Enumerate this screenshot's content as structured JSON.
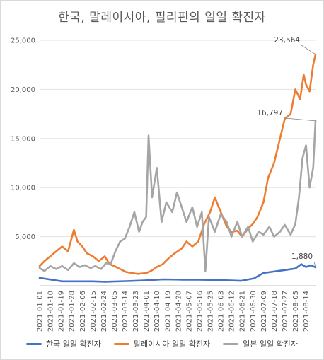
{
  "chart_data": {
    "type": "line",
    "title": "한국, 말레이시아, 필리핀의 일일 확진자",
    "ylim": [
      0,
      25000
    ],
    "yticks": [
      "-",
      "5,000",
      "10,000",
      "15,000",
      "20,000",
      "25,000"
    ],
    "ytick_values": [
      0,
      5000,
      10000,
      15000,
      20000,
      25000
    ],
    "grid": true,
    "legend_position": "bottom",
    "x_start": "2021-01-01",
    "x_end": "2021-08-22",
    "xtick_labels": [
      "2021-01-01",
      "2021-01-10",
      "2021-01-19",
      "2021-01-28",
      "2021-02-06",
      "2021-02-15",
      "2021-02-24",
      "2021-03-05",
      "2021-03-14",
      "2021-03-23",
      "2021-04-01",
      "2021-04-10",
      "2021-04-19",
      "2021-04-28",
      "2021-05-07",
      "2021-05-16",
      "2021-05-25",
      "2021-06-03",
      "2021-06-12",
      "2021-06-21",
      "2021-06-30",
      "2021-07-09",
      "2021-07-18",
      "2021-07-27",
      "2021-08-05",
      "2021-08-14"
    ],
    "annotations": [
      {
        "text": "23,564",
        "series": "말레이시아 일일 확진자",
        "x": "2021-08-22",
        "y": 23564
      },
      {
        "text": "16,797",
        "series": "일본 일일 확진자",
        "x": "2021-08-22",
        "y": 16797
      },
      {
        "text": "1,880",
        "series": "한국 일일 확진자",
        "x": "2021-08-22",
        "y": 1880
      }
    ],
    "series": [
      {
        "name": "한국 일일 확진자",
        "color": "#4472c4",
        "points": [
          [
            "2021-01-01",
            800
          ],
          [
            "2021-01-20",
            450
          ],
          [
            "2021-02-15",
            450
          ],
          [
            "2021-02-25",
            400
          ],
          [
            "2021-03-15",
            470
          ],
          [
            "2021-04-01",
            550
          ],
          [
            "2021-04-15",
            650
          ],
          [
            "2021-05-01",
            620
          ],
          [
            "2021-05-15",
            620
          ],
          [
            "2021-06-01",
            580
          ],
          [
            "2021-06-20",
            500
          ],
          [
            "2021-07-01",
            750
          ],
          [
            "2021-07-09",
            1300
          ],
          [
            "2021-07-18",
            1450
          ],
          [
            "2021-07-27",
            1600
          ],
          [
            "2021-08-05",
            1750
          ],
          [
            "2021-08-10",
            2200
          ],
          [
            "2021-08-14",
            1900
          ],
          [
            "2021-08-18",
            2100
          ],
          [
            "2021-08-22",
            1880
          ]
        ]
      },
      {
        "name": "말레이시아 일일 확진자",
        "color": "#ed7d31",
        "points": [
          [
            "2021-01-01",
            2000
          ],
          [
            "2021-01-05",
            2500
          ],
          [
            "2021-01-10",
            3000
          ],
          [
            "2021-01-15",
            3500
          ],
          [
            "2021-01-20",
            4000
          ],
          [
            "2021-01-25",
            3500
          ],
          [
            "2021-01-30",
            5700
          ],
          [
            "2021-02-02",
            4500
          ],
          [
            "2021-02-06",
            4000
          ],
          [
            "2021-02-10",
            3300
          ],
          [
            "2021-02-15",
            3000
          ],
          [
            "2021-02-20",
            2500
          ],
          [
            "2021-02-25",
            3000
          ],
          [
            "2021-03-01",
            2200
          ],
          [
            "2021-03-05",
            2000
          ],
          [
            "2021-03-10",
            1700
          ],
          [
            "2021-03-15",
            1400
          ],
          [
            "2021-03-20",
            1300
          ],
          [
            "2021-03-25",
            1200
          ],
          [
            "2021-04-01",
            1300
          ],
          [
            "2021-04-05",
            1500
          ],
          [
            "2021-04-10",
            1900
          ],
          [
            "2021-04-15",
            2200
          ],
          [
            "2021-04-20",
            2800
          ],
          [
            "2021-04-25",
            3300
          ],
          [
            "2021-05-01",
            3800
          ],
          [
            "2021-05-05",
            4500
          ],
          [
            "2021-05-10",
            4000
          ],
          [
            "2021-05-15",
            4500
          ],
          [
            "2021-05-20",
            6300
          ],
          [
            "2021-05-25",
            7500
          ],
          [
            "2021-05-29",
            9000
          ],
          [
            "2021-06-03",
            7500
          ],
          [
            "2021-06-08",
            6000
          ],
          [
            "2021-06-12",
            5500
          ],
          [
            "2021-06-17",
            5600
          ],
          [
            "2021-06-21",
            5000
          ],
          [
            "2021-06-26",
            5800
          ],
          [
            "2021-06-30",
            6300
          ],
          [
            "2021-07-04",
            7000
          ],
          [
            "2021-07-09",
            8500
          ],
          [
            "2021-07-13",
            11000
          ],
          [
            "2021-07-18",
            12500
          ],
          [
            "2021-07-23",
            15000
          ],
          [
            "2021-07-27",
            17000
          ],
          [
            "2021-08-01",
            17500
          ],
          [
            "2021-08-05",
            20000
          ],
          [
            "2021-08-09",
            19000
          ],
          [
            "2021-08-12",
            21500
          ],
          [
            "2021-08-14",
            20500
          ],
          [
            "2021-08-17",
            19800
          ],
          [
            "2021-08-20",
            22500
          ],
          [
            "2021-08-22",
            23564
          ]
        ]
      },
      {
        "name": "일본 일일 확진자",
        "color": "#a5a5a5",
        "points": [
          [
            "2021-01-01",
            1800
          ],
          [
            "2021-01-05",
            1500
          ],
          [
            "2021-01-10",
            2000
          ],
          [
            "2021-01-15",
            1700
          ],
          [
            "2021-01-20",
            2000
          ],
          [
            "2021-01-25",
            1600
          ],
          [
            "2021-01-30",
            2300
          ],
          [
            "2021-02-04",
            1900
          ],
          [
            "2021-02-08",
            2100
          ],
          [
            "2021-02-13",
            1800
          ],
          [
            "2021-02-17",
            2000
          ],
          [
            "2021-02-22",
            1700
          ],
          [
            "2021-02-26",
            2300
          ],
          [
            "2021-03-02",
            2200
          ],
          [
            "2021-03-06",
            3500
          ],
          [
            "2021-03-10",
            4500
          ],
          [
            "2021-03-14",
            4800
          ],
          [
            "2021-03-18",
            6000
          ],
          [
            "2021-03-22",
            7500
          ],
          [
            "2021-03-26",
            5500
          ],
          [
            "2021-03-29",
            6500
          ],
          [
            "2021-04-01",
            7000
          ],
          [
            "2021-04-03",
            15300
          ],
          [
            "2021-04-06",
            9000
          ],
          [
            "2021-04-10",
            12000
          ],
          [
            "2021-04-14",
            6500
          ],
          [
            "2021-04-18",
            8500
          ],
          [
            "2021-04-23",
            7500
          ],
          [
            "2021-04-27",
            9500
          ],
          [
            "2021-05-01",
            8000
          ],
          [
            "2021-05-05",
            6500
          ],
          [
            "2021-05-10",
            8000
          ],
          [
            "2021-05-14",
            6000
          ],
          [
            "2021-05-18",
            7500
          ],
          [
            "2021-05-21",
            1500
          ],
          [
            "2021-05-24",
            7000
          ],
          [
            "2021-05-29",
            5500
          ],
          [
            "2021-06-03",
            7300
          ],
          [
            "2021-06-08",
            6500
          ],
          [
            "2021-06-12",
            5000
          ],
          [
            "2021-06-17",
            6500
          ],
          [
            "2021-06-21",
            5000
          ],
          [
            "2021-06-26",
            6000
          ],
          [
            "2021-06-30",
            4500
          ],
          [
            "2021-07-05",
            5500
          ],
          [
            "2021-07-09",
            5200
          ],
          [
            "2021-07-14",
            6000
          ],
          [
            "2021-07-18",
            5000
          ],
          [
            "2021-07-23",
            5500
          ],
          [
            "2021-07-27",
            6200
          ],
          [
            "2021-08-01",
            5200
          ],
          [
            "2021-08-05",
            6300
          ],
          [
            "2021-08-08",
            9000
          ],
          [
            "2021-08-11",
            13000
          ],
          [
            "2021-08-14",
            14300
          ],
          [
            "2021-08-17",
            10000
          ],
          [
            "2021-08-20",
            12000
          ],
          [
            "2021-08-22",
            16797
          ]
        ]
      }
    ]
  }
}
